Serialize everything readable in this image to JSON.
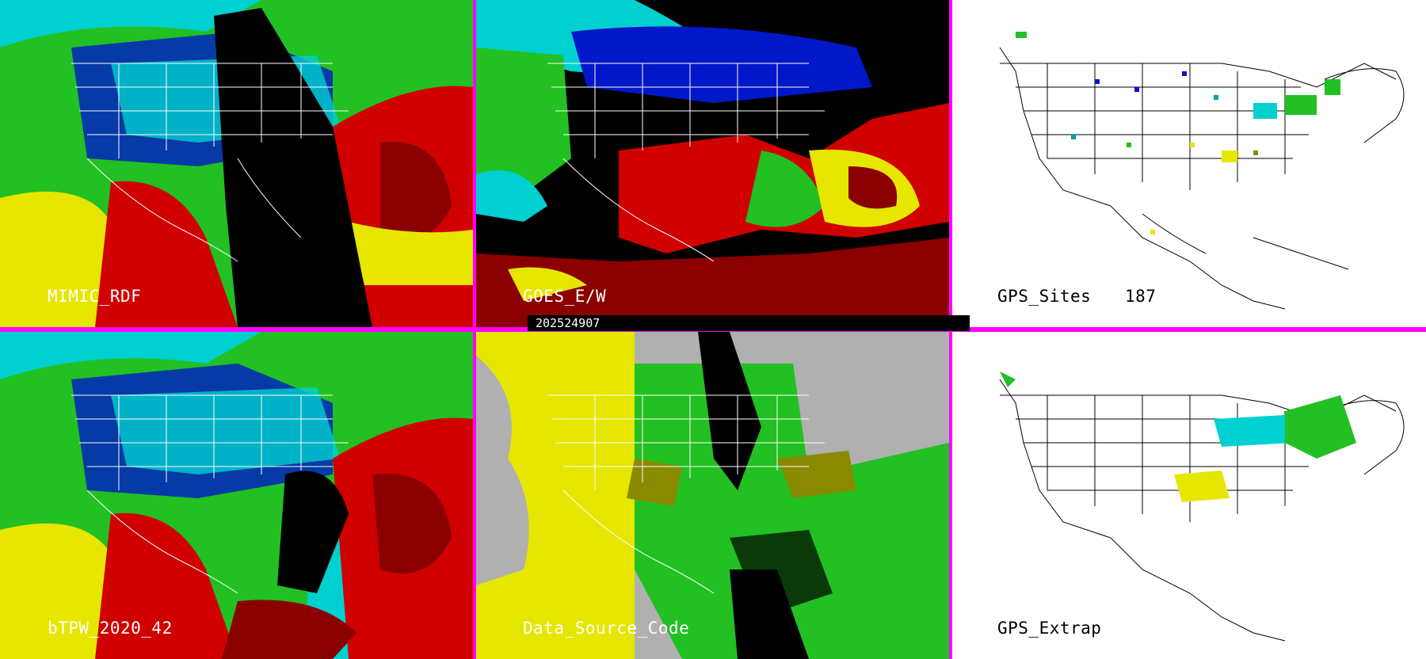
{
  "colors": {
    "divider": "#ff00ff",
    "cyan": "#00e5e5",
    "blue": "#0018c8",
    "green": "#22c022",
    "yellow": "#e6e600",
    "red": "#d00000",
    "darkred": "#8a0000",
    "gray": "#b0b0b0",
    "black": "#000000",
    "white": "#ffffff"
  },
  "panels": [
    {
      "id": "mimic-rdf",
      "label": "MIMIC_RDF"
    },
    {
      "id": "goes-ew",
      "label": "GOES_E/W"
    },
    {
      "id": "gps-sites",
      "label": "GPS_Sites",
      "count": "187"
    },
    {
      "id": "btpw",
      "label": "bTPW_2020_42"
    },
    {
      "id": "data-source-code",
      "label": "Data_Source_Code"
    },
    {
      "id": "gps-extrap",
      "label": "GPS_Extrap"
    }
  ],
  "timestamp": "202524907"
}
